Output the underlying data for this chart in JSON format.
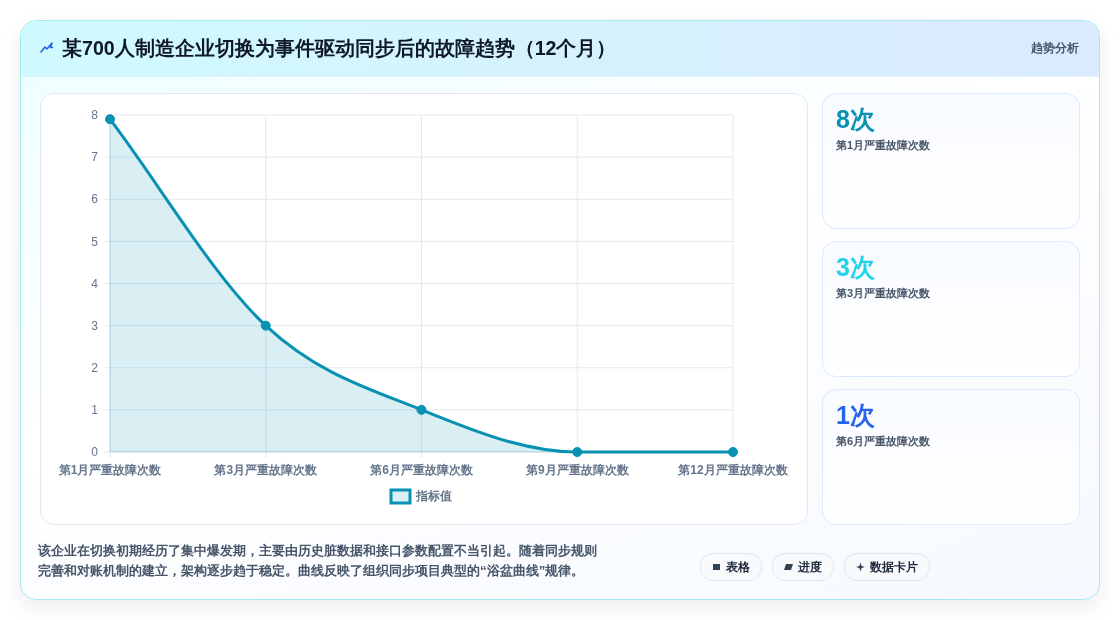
{
  "chart_data": [
    {
      "type": "area",
      "title": "某700人制造企业切换为事件驱动同步后的故障趋势（12个月）",
      "categories": [
        "第1月严重故障次数",
        "第3月严重故障次数",
        "第6月严重故障次数",
        "第9月严重故障次数",
        "第12月严重故障次数"
      ],
      "series": [
        {
          "name": "指标值",
          "color": "#0891b2",
          "values": [
            7.9,
            3,
            1,
            0,
            0
          ]
        }
      ],
      "ylim": [
        0,
        8
      ],
      "yticks": [
        0,
        1,
        2,
        3,
        4,
        5,
        6,
        7,
        8
      ],
      "grid": true,
      "legend": "bottom",
      "marker": "circle",
      "annotations": [
        "该企业在切换初期经历了集中爆发期，主要由历史脏数据和接口参数配置不当引起。随着同步规则完善和对账机制的建立，架构逐步趋于稳定。曲线反映了组织同步项目典型的“浴盆曲线”规律。",
        "表格",
        "进度",
        "数据卡片"
      ]
    },
    {
      "type": "other",
      "title": "8次",
      "subtitle": "第1月严重故障次数",
      "color": "#0891b2",
      "annotations": [
        "趋势分析"
      ]
    },
    {
      "type": "other",
      "title": "3次",
      "subtitle": "第3月严重故障次数",
      "color": "#22d3ee"
    },
    {
      "type": "other",
      "title": "1次",
      "subtitle": "第6月严重故障次数",
      "color": "#2563eb"
    }
  ]
}
